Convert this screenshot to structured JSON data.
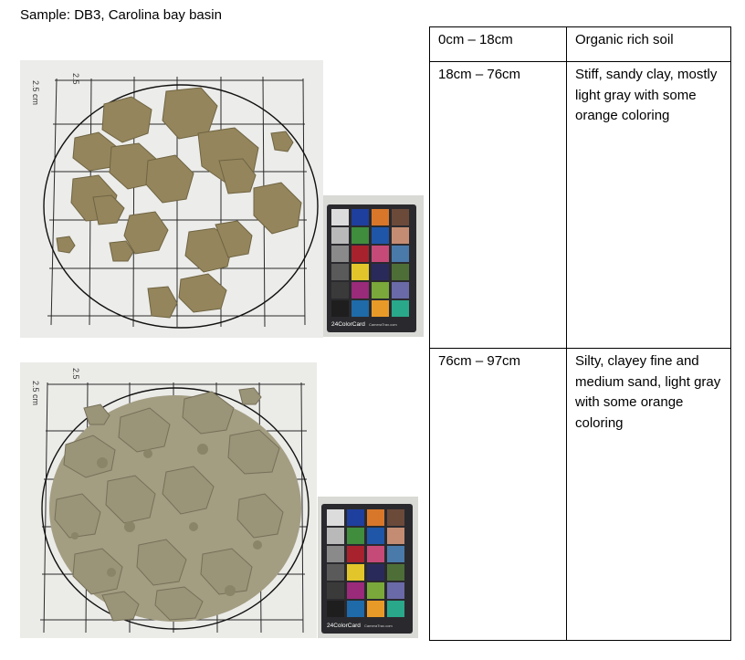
{
  "document": {
    "title": "Sample: DB3, Carolina bay basin"
  },
  "layers": [
    {
      "depth": "0cm – 18cm",
      "description": "Organic rich soil"
    },
    {
      "depth": "18cm – 76cm",
      "description": "Stiff, sandy clay, mostly light gray with some orange coloring"
    },
    {
      "depth": "76cm – 97cm",
      "description": "Silty, clayey fine and medium sand, light gray with some orange coloring"
    }
  ],
  "photos": {
    "grid_label_a": "2.5",
    "grid_label_b": "2.5 cm",
    "color_card_label": "24ColorCard",
    "color_card_brand": "CameraTrax.com"
  },
  "colors": {
    "soil_upper": "#94855c",
    "soil_lower": "#9a9478",
    "grid_paper": "#eeeeee",
    "card_bg": "#2a2a2e"
  }
}
